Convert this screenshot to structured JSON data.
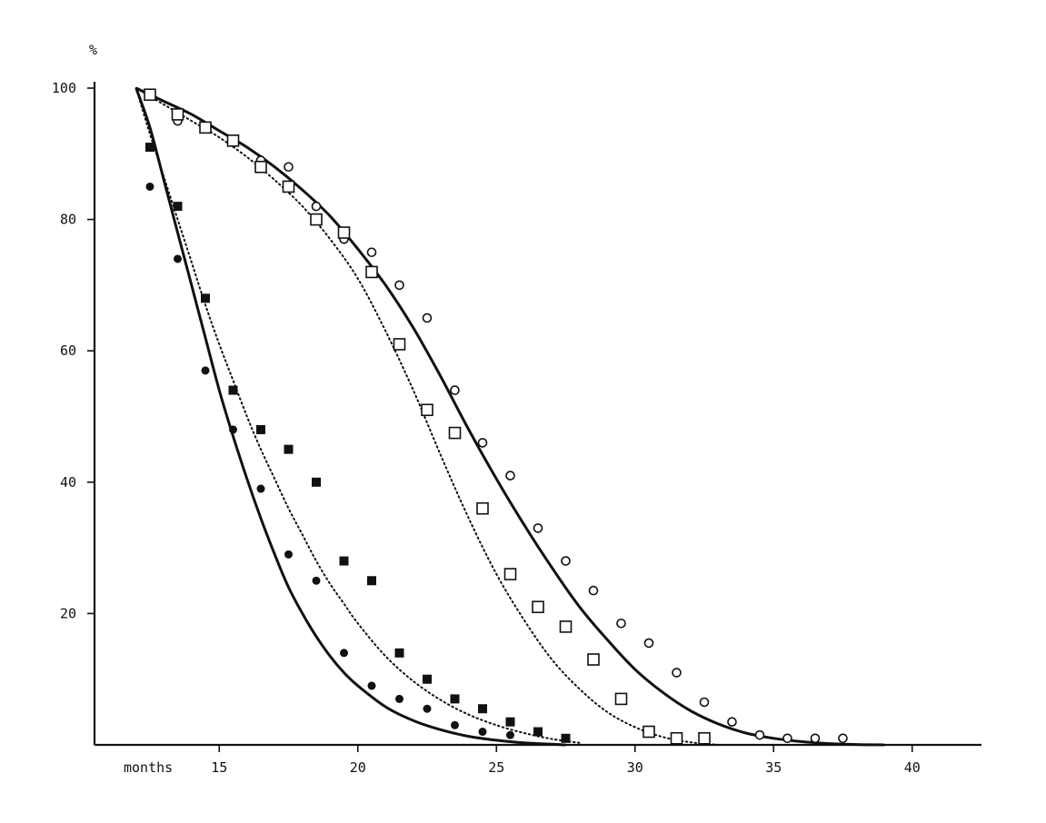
{
  "chart_data": {
    "type": "scatter",
    "ylabel": "%",
    "xlabel": "months",
    "xlim": [
      10.5,
      42.5
    ],
    "ylim": [
      0,
      100
    ],
    "x_ticks": [
      15,
      20,
      25,
      30,
      35,
      40
    ],
    "y_ticks": [
      20,
      40,
      60,
      80,
      100
    ],
    "grid": false,
    "legend": "none",
    "series": [
      {
        "marker": "filled-circle",
        "color": "#111111",
        "x": [
          12.5,
          13.5,
          14.5,
          15.5,
          16.5,
          17.5,
          18.5,
          19.5,
          20.5,
          21.5,
          22.5,
          23.5,
          24.5,
          25.5
        ],
        "y": [
          85,
          74,
          57,
          48,
          39,
          29,
          25,
          14,
          9,
          7,
          5.5,
          3,
          2,
          1.5
        ]
      },
      {
        "marker": "filled-square",
        "color": "#111111",
        "x": [
          12.5,
          13.5,
          14.5,
          15.5,
          16.5,
          17.5,
          18.5,
          19.5,
          20.5,
          21.5,
          22.5,
          23.5,
          24.5,
          25.5,
          26.5,
          27.5
        ],
        "y": [
          91,
          82,
          68,
          54,
          48,
          45,
          40,
          28,
          25,
          14,
          10,
          7,
          5.5,
          3.5,
          2,
          1
        ]
      },
      {
        "marker": "open-circle",
        "color": "#111111",
        "x": [
          12.5,
          13.5,
          14.5,
          15.5,
          16.5,
          17.5,
          18.5,
          19.5,
          20.5,
          21.5,
          22.5,
          23.5,
          24.5,
          25.5,
          26.5,
          27.5,
          28.5,
          29.5,
          30.5,
          31.5,
          32.5,
          33.5,
          34.5,
          35.5,
          36.5,
          37.5
        ],
        "y": [
          99,
          95,
          94,
          92,
          89,
          88,
          82,
          77,
          75,
          70,
          65,
          54,
          46,
          41,
          33,
          28,
          23.5,
          18.5,
          15.5,
          11,
          6.5,
          3.5,
          1.5,
          1,
          1,
          1
        ]
      },
      {
        "marker": "open-square",
        "color": "#111111",
        "x": [
          12.5,
          13.5,
          14.5,
          15.5,
          16.5,
          17.5,
          18.5,
          19.5,
          20.5,
          21.5,
          22.5,
          23.5,
          24.5,
          25.5,
          26.5,
          27.5,
          28.5,
          29.5,
          30.5,
          31.5,
          32.5
        ],
        "y": [
          99,
          96,
          94,
          92,
          88,
          85,
          80,
          78,
          72,
          61,
          51,
          47.5,
          36,
          26,
          21,
          18,
          13,
          7,
          2,
          1,
          1
        ]
      }
    ],
    "curves": [
      {
        "style": "solid",
        "x": [
          12,
          12.5,
          13,
          13.5,
          14,
          14.5,
          15,
          15.5,
          16,
          16.5,
          17,
          17.5,
          18,
          18.5,
          19,
          19.5,
          20,
          21,
          22,
          23,
          24,
          25,
          26,
          27,
          27.5
        ],
        "y": [
          100,
          94,
          86,
          78,
          70,
          62,
          54,
          47,
          40.5,
          34.5,
          29,
          24,
          20,
          16.5,
          13.5,
          11,
          9,
          5.8,
          3.7,
          2.3,
          1.3,
          0.7,
          0.3,
          0.1,
          0
        ]
      },
      {
        "style": "dotted",
        "x": [
          12,
          12.5,
          13,
          13.5,
          14,
          14.5,
          15,
          15.5,
          16,
          16.5,
          17,
          17.5,
          18,
          18.5,
          19,
          19.5,
          20,
          21,
          22,
          23,
          24,
          25,
          26,
          27,
          28
        ],
        "y": [
          100,
          93,
          86.5,
          80,
          73.5,
          67,
          61,
          55.5,
          50,
          45,
          40.5,
          36,
          32,
          28,
          24.5,
          21.5,
          18.5,
          13.5,
          9.7,
          6.8,
          4.6,
          3,
          1.8,
          0.9,
          0.3
        ]
      },
      {
        "style": "solid",
        "x": [
          12,
          13,
          14,
          15,
          16,
          17,
          18,
          19,
          20,
          21,
          22,
          23,
          24,
          25,
          26,
          27,
          28,
          29,
          30,
          31,
          32,
          33,
          34,
          35,
          36,
          37,
          38,
          39
        ],
        "y": [
          100,
          98,
          96,
          93.5,
          91,
          88,
          84.5,
          80.5,
          75.5,
          70,
          63.5,
          56,
          48,
          40.5,
          33.5,
          27,
          21,
          16,
          11.5,
          8,
          5.2,
          3.2,
          1.8,
          1,
          0.5,
          0.2,
          0.05,
          0
        ]
      },
      {
        "style": "dotted",
        "x": [
          12,
          13,
          14,
          15,
          16,
          17,
          18,
          19,
          20,
          21,
          22,
          23,
          24,
          25,
          26,
          27,
          28,
          29,
          30,
          31,
          32,
          33
        ],
        "y": [
          100,
          97.5,
          95,
          92.5,
          89.5,
          86,
          82,
          77,
          71,
          63,
          54,
          44,
          34.5,
          26,
          19,
          13,
          8.5,
          5,
          2.7,
          1.2,
          0.4,
          0
        ]
      }
    ]
  }
}
